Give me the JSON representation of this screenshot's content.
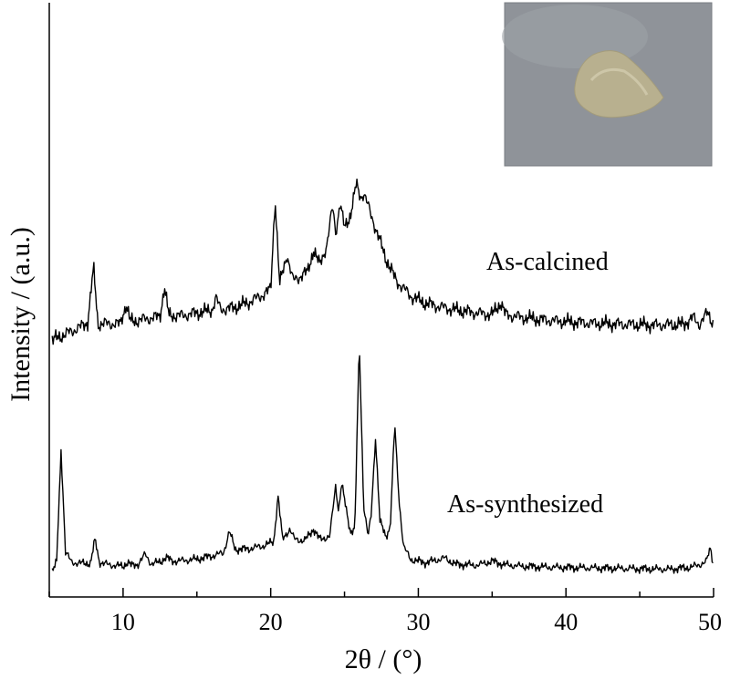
{
  "chart_data": {
    "type": "line",
    "title": "",
    "xlabel": "2θ / (°)",
    "ylabel": "Intensity / (a.u.)",
    "xlim": [
      5,
      50
    ],
    "x_ticks": [
      10,
      20,
      30,
      40,
      50
    ],
    "y_ticks_shown": false,
    "grid": false,
    "inset": "photo-of-powder-sample",
    "series": [
      {
        "name": "As-calcined",
        "color": "#000000",
        "points": [
          [
            5.2,
            0.2
          ],
          [
            6,
            0.8
          ],
          [
            7,
            1.6
          ],
          [
            7.6,
            2.2
          ],
          [
            8.0,
            8.5
          ],
          [
            8.3,
            2.0
          ],
          [
            9,
            2.1
          ],
          [
            9.8,
            2.0
          ],
          [
            10.2,
            4.3
          ],
          [
            10.5,
            2.3
          ],
          [
            11.5,
            2.6
          ],
          [
            12.5,
            2.9
          ],
          [
            12.8,
            6.3
          ],
          [
            13.1,
            3.0
          ],
          [
            14,
            3.0
          ],
          [
            15,
            3.3
          ],
          [
            16,
            3.6
          ],
          [
            16.3,
            5.0
          ],
          [
            16.6,
            3.7
          ],
          [
            17.5,
            3.9
          ],
          [
            18.5,
            4.5
          ],
          [
            19.5,
            5.4
          ],
          [
            20.0,
            6.0
          ],
          [
            20.3,
            16.5
          ],
          [
            20.6,
            6.5
          ],
          [
            21.1,
            10.0
          ],
          [
            21.5,
            7.0
          ],
          [
            22.0,
            7.5
          ],
          [
            22.5,
            8.0
          ],
          [
            22.9,
            10.5
          ],
          [
            23.3,
            8.8
          ],
          [
            23.8,
            11.0
          ],
          [
            24.2,
            15.5
          ],
          [
            24.4,
            12.5
          ],
          [
            24.7,
            15.8
          ],
          [
            25.0,
            13.0
          ],
          [
            25.4,
            14.5
          ],
          [
            25.8,
            18.0
          ],
          [
            26.1,
            16.5
          ],
          [
            26.3,
            17.0
          ],
          [
            26.7,
            15.0
          ],
          [
            27.2,
            12.5
          ],
          [
            27.8,
            9.5
          ],
          [
            28.5,
            7.0
          ],
          [
            29.5,
            5.2
          ],
          [
            30.5,
            4.4
          ],
          [
            32,
            3.8
          ],
          [
            33.5,
            3.4
          ],
          [
            35,
            3.1
          ],
          [
            35.6,
            4.5
          ],
          [
            35.9,
            3.1
          ],
          [
            37,
            2.8
          ],
          [
            38.5,
            2.5
          ],
          [
            40,
            2.3
          ],
          [
            42,
            2.1
          ],
          [
            44,
            2.0
          ],
          [
            46,
            1.9
          ],
          [
            48,
            2.0
          ],
          [
            48.6,
            2.8
          ],
          [
            49.0,
            2.0
          ],
          [
            49.6,
            3.3
          ],
          [
            50,
            2.0
          ]
        ]
      },
      {
        "name": "As-synthesized",
        "color": "#000000",
        "points": [
          [
            5.2,
            0.3
          ],
          [
            5.5,
            2.0
          ],
          [
            5.8,
            24.0
          ],
          [
            6.1,
            4.0
          ],
          [
            6.5,
            2.0
          ],
          [
            7,
            1.8
          ],
          [
            7.8,
            1.8
          ],
          [
            8.1,
            6.5
          ],
          [
            8.4,
            2.0
          ],
          [
            9,
            1.5
          ],
          [
            10,
            1.2
          ],
          [
            10.3,
            2.0
          ],
          [
            10.6,
            1.3
          ],
          [
            11,
            1.6
          ],
          [
            11.5,
            3.5
          ],
          [
            11.9,
            1.7
          ],
          [
            12.5,
            2.0
          ],
          [
            12.9,
            3.0
          ],
          [
            13.3,
            2.2
          ],
          [
            14,
            2.3
          ],
          [
            15,
            2.6
          ],
          [
            16,
            3.2
          ],
          [
            16.8,
            3.8
          ],
          [
            17.2,
            8.0
          ],
          [
            17.6,
            4.5
          ],
          [
            18.5,
            4.6
          ],
          [
            19.5,
            5.2
          ],
          [
            20.2,
            6.0
          ],
          [
            20.5,
            15.0
          ],
          [
            20.8,
            6.5
          ],
          [
            21.3,
            8.5
          ],
          [
            21.6,
            6.5
          ],
          [
            22.3,
            6.2
          ],
          [
            22.9,
            8.5
          ],
          [
            23.3,
            6.5
          ],
          [
            24.0,
            7.0
          ],
          [
            24.4,
            17.0
          ],
          [
            24.6,
            12.0
          ],
          [
            24.8,
            17.5
          ],
          [
            25.1,
            12.5
          ],
          [
            25.4,
            8.0
          ],
          [
            25.7,
            8.5
          ],
          [
            26.0,
            45.0
          ],
          [
            26.3,
            13.0
          ],
          [
            26.6,
            7.0
          ],
          [
            26.8,
            11.0
          ],
          [
            27.1,
            26.5
          ],
          [
            27.4,
            10.0
          ],
          [
            27.8,
            7.0
          ],
          [
            28.1,
            9.0
          ],
          [
            28.4,
            29.0
          ],
          [
            28.7,
            14.0
          ],
          [
            29.0,
            5.0
          ],
          [
            29.5,
            2.5
          ],
          [
            30.5,
            1.9
          ],
          [
            31.8,
            2.8
          ],
          [
            32.5,
            1.6
          ],
          [
            34,
            1.4
          ],
          [
            35,
            2.2
          ],
          [
            35.8,
            1.5
          ],
          [
            37,
            1.2
          ],
          [
            39,
            1.0
          ],
          [
            41,
            0.9
          ],
          [
            43,
            0.8
          ],
          [
            45,
            0.7
          ],
          [
            47,
            0.6
          ],
          [
            48.5,
            1.0
          ],
          [
            49.5,
            2.0
          ],
          [
            49.8,
            5.0
          ],
          [
            50,
            1.0
          ]
        ]
      }
    ]
  }
}
